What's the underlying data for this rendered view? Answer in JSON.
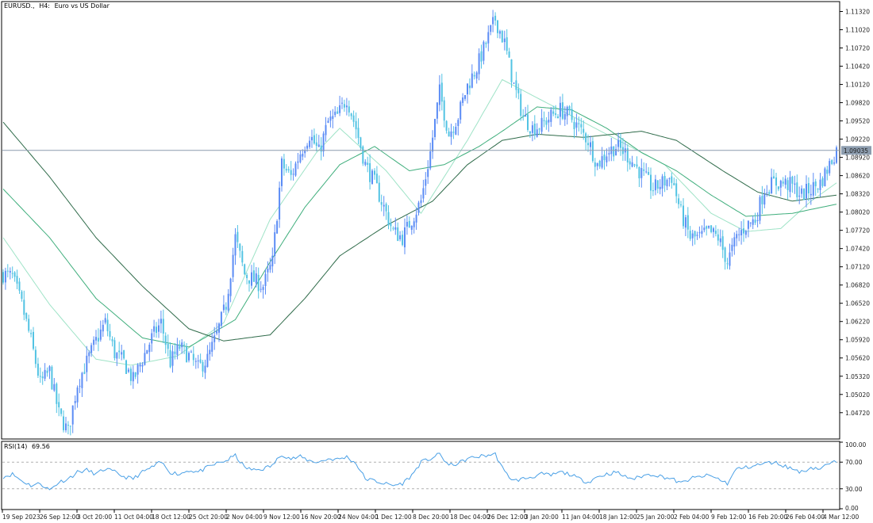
{
  "window": {
    "symbol": "EURUSD.,",
    "timeframe": "H4:",
    "description": "Euro vs US Dollar"
  },
  "colors": {
    "bull_candle": "#5b8cf5",
    "bear_candle": "#52c3e3",
    "ma_fast": "#9fe3c7",
    "ma_mid": "#3fae7c",
    "ma_slow": "#2f6b4a",
    "price_line": "#8c9cae",
    "rsi_line": "#4aa0e6",
    "price_badge": "#8c9cae"
  },
  "chart_data": [
    {
      "type": "candlestick",
      "title": "EURUSD., H4: Euro vs US Dollar",
      "ylim": [
        1.043,
        1.1147
      ],
      "yticks": [
        "1.11320",
        "1.11020",
        "1.10720",
        "1.10420",
        "1.10120",
        "1.09820",
        "1.09520",
        "1.09220",
        "1.08920",
        "1.08620",
        "1.08320",
        "1.08020",
        "1.07720",
        "1.07420",
        "1.07120",
        "1.06820",
        "1.06520",
        "1.06220",
        "1.05920",
        "1.05620",
        "1.05320",
        "1.05020",
        "1.04720"
      ],
      "current_price": "1.09035",
      "current_price_value": 1.09035,
      "x_labels": [
        "19 Sep 2023",
        "26 Sep 12:00",
        "3 Oct 20:00",
        "11 Oct 04:00",
        "18 Oct 12:00",
        "25 Oct 20:00",
        "2 Nov 04:00",
        "9 Nov 12:00",
        "16 Nov 20:00",
        "24 Nov 04:00",
        "1 Dec 12:00",
        "8 Dec 20:00",
        "18 Dec 04:00",
        "26 Dec 12:00",
        "3 Jan 20:00",
        "11 Jan 04:00",
        "18 Jan 12:00",
        "25 Jan 20:00",
        "2 Feb 04:00",
        "9 Feb 12:00",
        "16 Feb 20:00",
        "26 Feb 04:00",
        "4 Mar 12:00"
      ],
      "close_anchors": [
        [
          0,
          1.07
        ],
        [
          4,
          1.0695
        ],
        [
          8,
          1.065
        ],
        [
          12,
          1.059
        ],
        [
          16,
          1.052
        ],
        [
          20,
          1.054
        ],
        [
          24,
          1.047
        ],
        [
          28,
          1.044
        ],
        [
          32,
          1.052
        ],
        [
          36,
          1.0555
        ],
        [
          40,
          1.059
        ],
        [
          44,
          1.062
        ],
        [
          48,
          1.057
        ],
        [
          52,
          1.0555
        ],
        [
          56,
          1.0525
        ],
        [
          60,
          1.056
        ],
        [
          64,
          1.0595
        ],
        [
          68,
          1.062
        ],
        [
          72,
          1.0555
        ],
        [
          76,
          1.058
        ],
        [
          80,
          1.0565
        ],
        [
          84,
          1.0545
        ],
        [
          88,
          1.056
        ],
        [
          92,
          1.06
        ],
        [
          96,
          1.065
        ],
        [
          100,
          1.076
        ],
        [
          104,
          1.07
        ],
        [
          108,
          1.069
        ],
        [
          112,
          1.068
        ],
        [
          116,
          1.072
        ],
        [
          120,
          1.088
        ],
        [
          124,
          1.086
        ],
        [
          128,
          1.09
        ],
        [
          132,
          1.093
        ],
        [
          136,
          1.09
        ],
        [
          140,
          1.095
        ],
        [
          144,
          1.096
        ],
        [
          148,
          1.099
        ],
        [
          152,
          1.094
        ],
        [
          156,
          1.088
        ],
        [
          160,
          1.085
        ],
        [
          164,
          1.081
        ],
        [
          168,
          1.077
        ],
        [
          172,
          1.076
        ],
        [
          176,
          1.079
        ],
        [
          180,
          1.082
        ],
        [
          184,
          1.09
        ],
        [
          188,
          1.1
        ],
        [
          192,
          1.093
        ],
        [
          196,
          1.096
        ],
        [
          200,
          1.101
        ],
        [
          204,
          1.104
        ],
        [
          208,
          1.108
        ],
        [
          212,
          1.112
        ],
        [
          216,
          1.108
        ],
        [
          220,
          1.101
        ],
        [
          224,
          1.096
        ],
        [
          228,
          1.094
        ],
        [
          232,
          1.0945
        ],
        [
          236,
          1.096
        ],
        [
          240,
          1.097
        ],
        [
          244,
          1.096
        ],
        [
          248,
          1.094
        ],
        [
          252,
          1.092
        ],
        [
          256,
          1.088
        ],
        [
          260,
          1.09
        ],
        [
          264,
          1.091
        ],
        [
          268,
          1.09
        ],
        [
          272,
          1.088
        ],
        [
          276,
          1.086
        ],
        [
          280,
          1.084
        ],
        [
          284,
          1.085
        ],
        [
          288,
          1.086
        ],
        [
          292,
          1.08
        ],
        [
          296,
          1.076
        ],
        [
          300,
          1.076
        ],
        [
          304,
          1.077
        ],
        [
          308,
          1.076
        ],
        [
          312,
          1.072
        ],
        [
          316,
          1.076
        ],
        [
          320,
          1.078
        ],
        [
          324,
          1.079
        ],
        [
          328,
          1.084
        ],
        [
          332,
          1.085
        ],
        [
          336,
          1.085
        ],
        [
          340,
          1.0845
        ],
        [
          344,
          1.083
        ],
        [
          348,
          1.084
        ],
        [
          352,
          1.085
        ],
        [
          356,
          1.088
        ],
        [
          359,
          1.0905
        ]
      ],
      "series": [
        {
          "kind": "ma_fast",
          "anchors": [
            [
              0,
              1.076
            ],
            [
              20,
              1.065
            ],
            [
              40,
              1.056
            ],
            [
              55,
              1.055
            ],
            [
              75,
              1.0565
            ],
            [
              95,
              1.062
            ],
            [
              115,
              1.079
            ],
            [
              135,
              1.09
            ],
            [
              145,
              1.094
            ],
            [
              165,
              1.087
            ],
            [
              180,
              1.08
            ],
            [
              200,
              1.092
            ],
            [
              215,
              1.102
            ],
            [
              225,
              1.1
            ],
            [
              245,
              1.096
            ],
            [
              265,
              1.092
            ],
            [
              285,
              1.088
            ],
            [
              305,
              1.08
            ],
            [
              320,
              1.077
            ],
            [
              335,
              1.0775
            ],
            [
              348,
              1.082
            ],
            [
              359,
              1.085
            ]
          ]
        },
        {
          "kind": "ma_mid",
          "anchors": [
            [
              0,
              1.084
            ],
            [
              20,
              1.076
            ],
            [
              40,
              1.066
            ],
            [
              60,
              1.0595
            ],
            [
              80,
              1.058
            ],
            [
              100,
              1.0625
            ],
            [
              115,
              1.072
            ],
            [
              130,
              1.081
            ],
            [
              145,
              1.088
            ],
            [
              160,
              1.091
            ],
            [
              175,
              1.087
            ],
            [
              190,
              1.088
            ],
            [
              205,
              1.091
            ],
            [
              215,
              1.0935
            ],
            [
              230,
              1.0975
            ],
            [
              245,
              1.097
            ],
            [
              260,
              1.094
            ],
            [
              275,
              1.09
            ],
            [
              290,
              1.087
            ],
            [
              305,
              1.083
            ],
            [
              320,
              1.0795
            ],
            [
              340,
              1.08
            ],
            [
              359,
              1.0815
            ]
          ]
        },
        {
          "kind": "ma_slow",
          "anchors": [
            [
              0,
              1.095
            ],
            [
              20,
              1.086
            ],
            [
              40,
              1.076
            ],
            [
              60,
              1.068
            ],
            [
              80,
              1.061
            ],
            [
              95,
              1.059
            ],
            [
              115,
              1.06
            ],
            [
              130,
              1.066
            ],
            [
              145,
              1.073
            ],
            [
              165,
              1.078
            ],
            [
              185,
              1.082
            ],
            [
              200,
              1.088
            ],
            [
              215,
              1.092
            ],
            [
              230,
              1.093
            ],
            [
              250,
              1.0925
            ],
            [
              275,
              1.0935
            ],
            [
              290,
              1.092
            ],
            [
              310,
              1.087
            ],
            [
              325,
              1.0835
            ],
            [
              340,
              1.082
            ],
            [
              359,
              1.083
            ]
          ]
        }
      ]
    },
    {
      "type": "line",
      "title": "RSI(14) 69.56",
      "label": "RSI(14)",
      "value": "69.56",
      "ylim": [
        0,
        100
      ],
      "yticks": [
        "100.00",
        "70.00",
        "30.00",
        "0.00"
      ],
      "levels": [
        70,
        30
      ],
      "anchors": [
        [
          0,
          48
        ],
        [
          4,
          52
        ],
        [
          8,
          42
        ],
        [
          12,
          35
        ],
        [
          16,
          38
        ],
        [
          20,
          28
        ],
        [
          24,
          40
        ],
        [
          28,
          45
        ],
        [
          32,
          55
        ],
        [
          36,
          58
        ],
        [
          40,
          52
        ],
        [
          44,
          60
        ],
        [
          48,
          55
        ],
        [
          52,
          48
        ],
        [
          56,
          45
        ],
        [
          60,
          55
        ],
        [
          64,
          62
        ],
        [
          68,
          70
        ],
        [
          72,
          55
        ],
        [
          76,
          52
        ],
        [
          80,
          58
        ],
        [
          84,
          55
        ],
        [
          88,
          62
        ],
        [
          92,
          68
        ],
        [
          96,
          72
        ],
        [
          100,
          80
        ],
        [
          104,
          62
        ],
        [
          108,
          58
        ],
        [
          112,
          60
        ],
        [
          116,
          65
        ],
        [
          120,
          82
        ],
        [
          124,
          75
        ],
        [
          128,
          78
        ],
        [
          132,
          72
        ],
        [
          136,
          70
        ],
        [
          140,
          75
        ],
        [
          144,
          74
        ],
        [
          148,
          78
        ],
        [
          152,
          68
        ],
        [
          156,
          45
        ],
        [
          160,
          42
        ],
        [
          164,
          38
        ],
        [
          168,
          35
        ],
        [
          172,
          38
        ],
        [
          176,
          50
        ],
        [
          180,
          70
        ],
        [
          184,
          75
        ],
        [
          188,
          82
        ],
        [
          192,
          65
        ],
        [
          196,
          68
        ],
        [
          200,
          75
        ],
        [
          204,
          78
        ],
        [
          208,
          80
        ],
        [
          212,
          82
        ],
        [
          216,
          55
        ],
        [
          220,
          42
        ],
        [
          224,
          45
        ],
        [
          228,
          48
        ],
        [
          232,
          52
        ],
        [
          236,
          50
        ],
        [
          240,
          55
        ],
        [
          244,
          52
        ],
        [
          248,
          45
        ],
        [
          252,
          40
        ],
        [
          256,
          48
        ],
        [
          260,
          52
        ],
        [
          264,
          55
        ],
        [
          268,
          48
        ],
        [
          272,
          45
        ],
        [
          276,
          50
        ],
        [
          280,
          52
        ],
        [
          284,
          48
        ],
        [
          288,
          45
        ],
        [
          292,
          38
        ],
        [
          296,
          45
        ],
        [
          300,
          48
        ],
        [
          304,
          50
        ],
        [
          308,
          45
        ],
        [
          312,
          38
        ],
        [
          316,
          60
        ],
        [
          320,
          62
        ],
        [
          324,
          65
        ],
        [
          328,
          68
        ],
        [
          332,
          70
        ],
        [
          336,
          65
        ],
        [
          340,
          60
        ],
        [
          344,
          55
        ],
        [
          348,
          62
        ],
        [
          352,
          60
        ],
        [
          356,
          68
        ],
        [
          359,
          70
        ]
      ]
    }
  ]
}
